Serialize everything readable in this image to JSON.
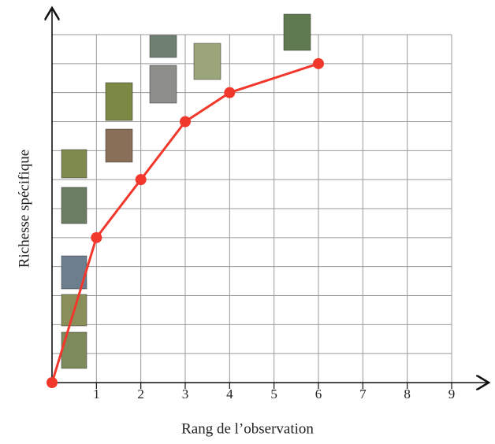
{
  "chart_data": {
    "type": "line",
    "x_label": "Rang de l’observation",
    "y_label": "Richesse spécifique",
    "x": [
      0,
      1,
      2,
      3,
      4,
      6
    ],
    "series": [
      {
        "color": "#f2382c",
        "values": [
          0,
          5,
          7,
          9,
          10,
          11
        ]
      }
    ],
    "xlim": [
      0,
      9
    ],
    "xticks": [
      1,
      2,
      3,
      4,
      5,
      6,
      7,
      8,
      9
    ],
    "ylim": [
      0,
      12
    ],
    "grid": true
  }
}
